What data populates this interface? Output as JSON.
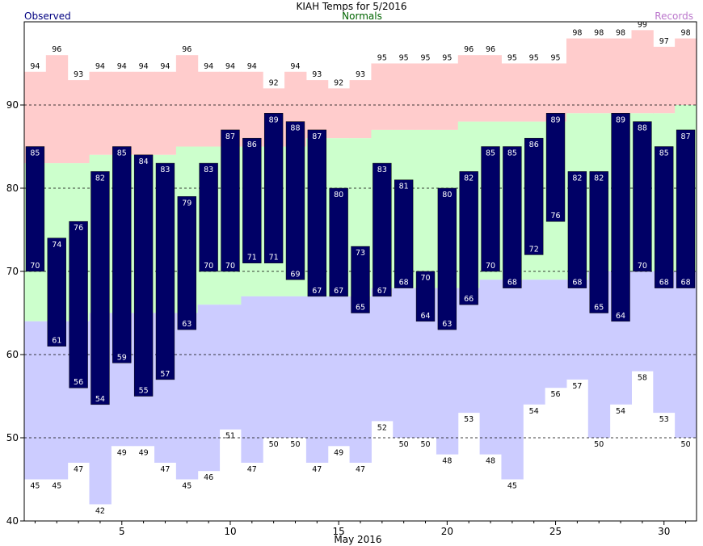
{
  "chart_data": {
    "type": "bar",
    "title": "KIAH Temps for 5/2016",
    "xlabel": "May 2016",
    "ylabel": "",
    "ylim": [
      40,
      100
    ],
    "xlim": [
      0.5,
      31.5
    ],
    "yticks": [
      40,
      50,
      60,
      70,
      80,
      90
    ],
    "xticks": [
      5,
      10,
      15,
      20,
      25,
      30
    ],
    "grid_lines": [
      50,
      60,
      70,
      80,
      90
    ],
    "legend": {
      "observed": "Observed",
      "normals": "Normals",
      "records": "Records"
    },
    "colors": {
      "observed": "#000066",
      "normals_band": "#ccffcc",
      "records_high_band": "#ffcccc",
      "records_low_band": "#ccccff",
      "observed_legend": "#000080",
      "normals_legend": "#006400",
      "records_legend": "#bb77cc",
      "observed_label": "#ffffff"
    },
    "days": [
      1,
      2,
      3,
      4,
      5,
      6,
      7,
      8,
      9,
      10,
      11,
      12,
      13,
      14,
      15,
      16,
      17,
      18,
      19,
      20,
      21,
      22,
      23,
      24,
      25,
      26,
      27,
      28,
      29,
      30,
      31
    ],
    "observed_high": [
      85,
      74,
      76,
      82,
      85,
      84,
      83,
      79,
      83,
      87,
      86,
      89,
      88,
      87,
      80,
      73,
      83,
      81,
      70,
      80,
      82,
      85,
      85,
      86,
      89,
      82,
      82,
      89,
      88,
      85,
      87
    ],
    "observed_low": [
      70,
      61,
      56,
      54,
      59,
      55,
      57,
      63,
      70,
      70,
      71,
      71,
      69,
      67,
      67,
      65,
      67,
      68,
      64,
      63,
      66,
      70,
      68,
      72,
      76,
      68,
      65,
      64,
      70,
      68,
      68
    ],
    "normal_high": [
      83,
      83,
      83,
      84,
      84,
      84,
      84,
      85,
      85,
      85,
      85,
      85,
      85,
      86,
      86,
      86,
      87,
      87,
      87,
      87,
      88,
      88,
      88,
      88,
      88,
      89,
      89,
      89,
      89,
      89,
      90
    ],
    "normal_low": [
      64,
      64,
      64,
      65,
      65,
      65,
      65,
      65,
      66,
      66,
      67,
      67,
      67,
      67,
      67,
      67,
      68,
      68,
      68,
      68,
      68,
      69,
      69,
      69,
      69,
      69,
      70,
      70,
      70,
      70,
      70
    ],
    "record_high": [
      94,
      96,
      93,
      94,
      94,
      94,
      94,
      96,
      94,
      94,
      94,
      92,
      94,
      93,
      92,
      93,
      95,
      95,
      95,
      95,
      96,
      96,
      95,
      95,
      95,
      98,
      98,
      98,
      99,
      97,
      98
    ],
    "record_low": [
      45,
      45,
      47,
      42,
      49,
      49,
      47,
      45,
      46,
      51,
      47,
      50,
      50,
      47,
      49,
      47,
      52,
      50,
      50,
      48,
      53,
      48,
      45,
      54,
      56,
      57,
      50,
      54,
      58,
      53,
      50
    ]
  }
}
